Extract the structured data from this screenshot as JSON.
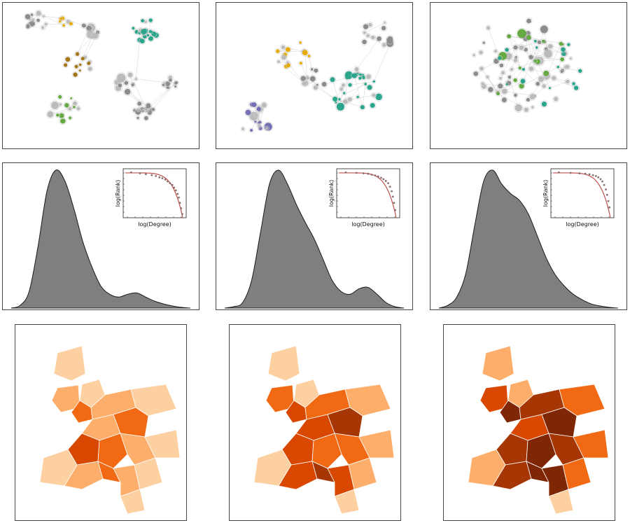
{
  "colors": {
    "density_fill": "#7f7f7f",
    "density_stroke": "#1a1a1a",
    "fit_line": "#c0504d",
    "node_gray": "#8c8c8c",
    "node_green": "#2ca58d",
    "node_lightgreen": "#66aa44",
    "node_yellow": "#e6ab02",
    "node_purple": "#7570b3",
    "node_brown": "#a6761d",
    "map_scale": [
      "#fff5eb",
      "#fdd0a2",
      "#fdae6b",
      "#f16913",
      "#d94801",
      "#a63603",
      "#7f2704"
    ]
  },
  "chart_data": [
    {
      "type": "network",
      "communities": [
        "gray",
        "yellow",
        "green",
        "lightgreen",
        "brown"
      ]
    },
    {
      "type": "network",
      "communities": [
        "gray",
        "yellow",
        "green",
        "purple"
      ]
    },
    {
      "type": "network",
      "communities": [
        "gray",
        "green",
        "lightgreen"
      ]
    },
    {
      "type": "area",
      "x": [
        0,
        0.05,
        0.1,
        0.15,
        0.2,
        0.25,
        0.3,
        0.35,
        0.4,
        0.45,
        0.5,
        0.55,
        0.6,
        0.65,
        0.7,
        0.75,
        0.8,
        0.85,
        0.9,
        0.95,
        1
      ],
      "y": [
        0.0,
        0.02,
        0.12,
        0.45,
        0.85,
        1.0,
        0.92,
        0.72,
        0.48,
        0.3,
        0.16,
        0.1,
        0.08,
        0.1,
        0.11,
        0.08,
        0.05,
        0.03,
        0.015,
        0.005,
        0.0
      ],
      "grid": false,
      "inset": {
        "type": "scatter",
        "xlabel": "log(Degree)",
        "ylabel": "log(Rank)",
        "x": [
          0.1,
          0.25,
          0.35,
          0.45,
          0.52,
          0.58,
          0.63,
          0.68,
          0.72,
          0.76,
          0.8,
          0.83,
          0.86,
          0.89,
          0.91,
          0.93,
          0.95,
          0.97
        ],
        "y": [
          0.98,
          0.96,
          0.94,
          0.92,
          0.9,
          0.87,
          0.85,
          0.82,
          0.78,
          0.74,
          0.7,
          0.64,
          0.58,
          0.5,
          0.42,
          0.3,
          0.18,
          0.05
        ]
      }
    },
    {
      "type": "area",
      "x": [
        0,
        0.05,
        0.1,
        0.15,
        0.2,
        0.25,
        0.3,
        0.35,
        0.4,
        0.45,
        0.5,
        0.55,
        0.6,
        0.65,
        0.7,
        0.75,
        0.8,
        0.85,
        0.9,
        0.95,
        1
      ],
      "y": [
        0.0,
        0.01,
        0.04,
        0.2,
        0.55,
        0.9,
        1.0,
        0.9,
        0.75,
        0.62,
        0.5,
        0.35,
        0.2,
        0.12,
        0.1,
        0.14,
        0.15,
        0.1,
        0.04,
        0.01,
        0.0
      ],
      "grid": false,
      "inset": {
        "type": "scatter",
        "xlabel": "log(Degree)",
        "ylabel": "log(Rank)",
        "x": [
          0.12,
          0.3,
          0.42,
          0.5,
          0.56,
          0.62,
          0.67,
          0.72,
          0.76,
          0.8,
          0.84,
          0.87,
          0.9,
          0.92,
          0.94,
          0.96
        ],
        "y": [
          0.98,
          0.97,
          0.96,
          0.95,
          0.93,
          0.91,
          0.89,
          0.86,
          0.83,
          0.79,
          0.74,
          0.66,
          0.56,
          0.44,
          0.3,
          0.14
        ]
      }
    },
    {
      "type": "area",
      "x": [
        0,
        0.05,
        0.1,
        0.15,
        0.2,
        0.25,
        0.3,
        0.35,
        0.4,
        0.45,
        0.5,
        0.55,
        0.6,
        0.65,
        0.7,
        0.75,
        0.8,
        0.85,
        0.9,
        0.95,
        1
      ],
      "y": [
        0.0,
        0.02,
        0.08,
        0.25,
        0.6,
        0.92,
        1.0,
        0.9,
        0.83,
        0.78,
        0.68,
        0.52,
        0.36,
        0.24,
        0.16,
        0.1,
        0.06,
        0.03,
        0.015,
        0.005,
        0.0
      ],
      "grid": false,
      "inset": {
        "type": "scatter",
        "xlabel": "log(Degree)",
        "ylabel": "log(Rank)",
        "x": [
          0.1,
          0.3,
          0.45,
          0.55,
          0.62,
          0.68,
          0.73,
          0.77,
          0.81,
          0.84,
          0.87,
          0.9,
          0.92,
          0.94,
          0.96
        ],
        "y": [
          0.98,
          0.97,
          0.96,
          0.95,
          0.94,
          0.92,
          0.9,
          0.87,
          0.83,
          0.78,
          0.7,
          0.6,
          0.48,
          0.34,
          0.2
        ]
      }
    },
    {
      "type": "heatmap",
      "map": "choropleth",
      "levels": [
        1,
        2,
        3,
        2,
        1,
        2,
        3,
        4,
        3,
        2,
        1,
        1,
        2,
        3,
        2,
        1,
        1,
        1
      ]
    },
    {
      "type": "heatmap",
      "map": "choropleth",
      "levels": [
        1,
        3,
        4,
        3,
        2,
        4,
        5,
        4,
        3,
        3,
        2,
        1,
        4,
        5,
        4,
        2,
        1,
        1
      ]
    },
    {
      "type": "heatmap",
      "map": "choropleth",
      "levels": [
        2,
        4,
        6,
        5,
        3,
        4,
        6,
        5,
        6,
        5,
        3,
        2,
        5,
        6,
        6,
        3,
        2,
        1
      ]
    }
  ]
}
